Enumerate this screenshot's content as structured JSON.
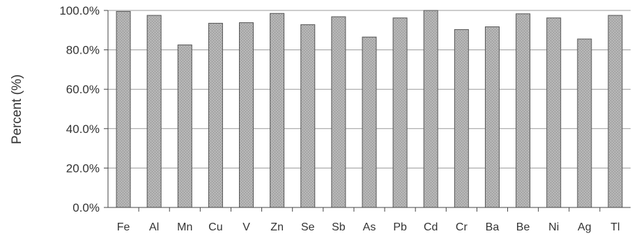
{
  "chart_data": {
    "type": "bar",
    "ylabel": "Percent (%)",
    "xlabel": "",
    "title": "",
    "categories": [
      "Fe",
      "Al",
      "Mn",
      "Cu",
      "V",
      "Zn",
      "Se",
      "Sb",
      "As",
      "Pb",
      "Cd",
      "Cr",
      "Ba",
      "Be",
      "Ni",
      "Ag",
      "Tl"
    ],
    "values": [
      99.5,
      97.5,
      82.5,
      93.5,
      93.8,
      98.5,
      92.8,
      96.8,
      86.5,
      96.2,
      100.0,
      90.3,
      91.7,
      98.3,
      96.2,
      85.5,
      97.5
    ],
    "ylim": [
      0,
      100
    ],
    "yticks": [
      "0.0%",
      "20.0%",
      "40.0%",
      "60.0%",
      "80.0%",
      "100.0%"
    ],
    "grid": true,
    "legend": "none",
    "colors": {
      "bar_fill": "#a9a9a9",
      "bar_stroke": "#555555",
      "grid": "#9a9a9a",
      "axis": "#444444"
    }
  }
}
